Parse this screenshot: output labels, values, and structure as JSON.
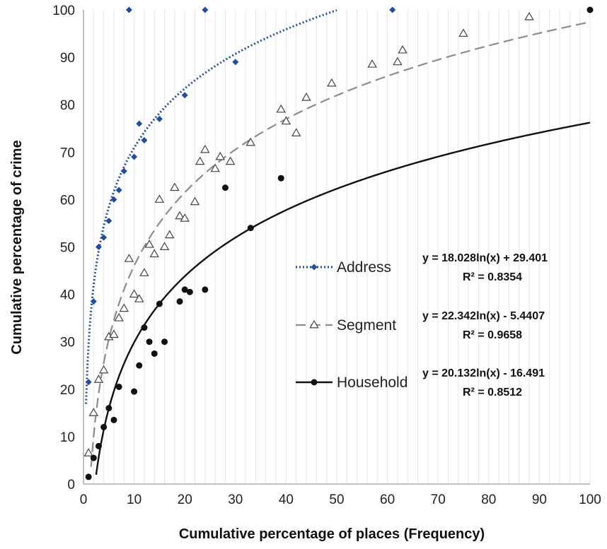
{
  "chart_data": {
    "type": "scatter",
    "xlabel": "Cumulative percentage of places (Frequency)",
    "ylabel": "Cumulative percentage of crime",
    "xlim": [
      0,
      100
    ],
    "ylim": [
      0,
      100
    ],
    "x_ticks": [
      "0",
      "10",
      "20",
      "30",
      "40",
      "50",
      "60",
      "70",
      "80",
      "90",
      "100"
    ],
    "y_ticks": [
      "0",
      "10",
      "20",
      "30",
      "40",
      "50",
      "60",
      "70",
      "80",
      "90",
      "100"
    ],
    "grid": "vertical minor gridlines, light gray",
    "legend_position": "right-center",
    "series": [
      {
        "name": "Address",
        "marker": "diamond",
        "color": "#1f4e9e",
        "trendline_style": "dotted",
        "equation": "y = 18.028ln(x) + 29.401",
        "r_squared": "R² = 0.8354",
        "trend": {
          "a": 18.028,
          "b": 29.401
        },
        "points": [
          [
            1,
            21.5
          ],
          [
            2,
            38.5
          ],
          [
            3,
            50
          ],
          [
            4,
            52
          ],
          [
            5,
            55.5
          ],
          [
            6,
            60
          ],
          [
            7,
            62
          ],
          [
            8,
            66
          ],
          [
            10,
            69
          ],
          [
            11,
            76
          ],
          [
            12,
            72.5
          ],
          [
            15,
            77
          ],
          [
            20,
            82
          ],
          [
            30,
            89
          ],
          [
            9,
            100
          ],
          [
            24,
            100
          ],
          [
            61,
            100
          ]
        ]
      },
      {
        "name": "Segment",
        "marker": "triangle",
        "color": "#8c8c8c",
        "trendline_style": "dashed",
        "equation": "y = 22.342ln(x) - 5.4407",
        "r_squared": "R² = 0.9658",
        "trend": {
          "a": 22.342,
          "b": -5.4407
        },
        "points": [
          [
            1,
            6.5
          ],
          [
            2,
            15
          ],
          [
            3,
            22
          ],
          [
            4,
            24
          ],
          [
            5,
            31
          ],
          [
            6,
            31.5
          ],
          [
            7,
            35
          ],
          [
            8,
            37
          ],
          [
            9,
            47.5
          ],
          [
            10,
            40
          ],
          [
            11,
            39
          ],
          [
            12,
            44.5
          ],
          [
            13,
            50.5
          ],
          [
            14,
            48.5
          ],
          [
            15,
            60
          ],
          [
            16,
            50
          ],
          [
            17,
            52.5
          ],
          [
            18,
            62.5
          ],
          [
            19,
            56.5
          ],
          [
            20,
            56
          ],
          [
            22,
            59.5
          ],
          [
            23,
            68
          ],
          [
            24,
            70.5
          ],
          [
            26,
            66.5
          ],
          [
            27,
            69
          ],
          [
            29,
            68
          ],
          [
            33,
            72
          ],
          [
            39,
            79
          ],
          [
            40,
            76.5
          ],
          [
            42,
            74
          ],
          [
            44,
            81.5
          ],
          [
            49,
            84.5
          ],
          [
            57,
            88.5
          ],
          [
            62,
            89
          ],
          [
            63,
            91.5
          ],
          [
            75,
            95
          ],
          [
            88,
            98.5
          ]
        ]
      },
      {
        "name": "Household",
        "marker": "circle",
        "color": "#111111",
        "trendline_style": "solid",
        "equation": "y = 20.132ln(x) - 16.491",
        "r_squared": "R² = 0.8512",
        "trend": {
          "a": 20.132,
          "b": -16.491
        },
        "points": [
          [
            1,
            1.5
          ],
          [
            2,
            5.5
          ],
          [
            3,
            8
          ],
          [
            4,
            12
          ],
          [
            5,
            16
          ],
          [
            6,
            13.5
          ],
          [
            7,
            20.5
          ],
          [
            10,
            19.5
          ],
          [
            11,
            25
          ],
          [
            12,
            33
          ],
          [
            13,
            30
          ],
          [
            14,
            27.5
          ],
          [
            15,
            38
          ],
          [
            16,
            30
          ],
          [
            19,
            38.5
          ],
          [
            20,
            41
          ],
          [
            21,
            40.5
          ],
          [
            24,
            41
          ],
          [
            28,
            62.5
          ],
          [
            33,
            54
          ],
          [
            39,
            64.5
          ],
          [
            100,
            100
          ]
        ]
      }
    ]
  }
}
